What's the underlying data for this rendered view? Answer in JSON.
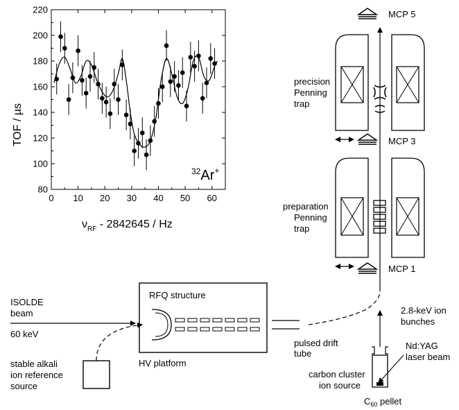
{
  "chart_data": {
    "type": "scatter",
    "xlabel_main": "ν",
    "xlabel_sub": "RF",
    "xlabel_rest": " - 2842645  /  Hz",
    "ylabel": "TOF  /  µs",
    "xlim": [
      0,
      65
    ],
    "ylim": [
      80,
      220
    ],
    "xticks": [
      0,
      10,
      20,
      30,
      40,
      50,
      60
    ],
    "yticks": [
      80,
      100,
      120,
      140,
      160,
      180,
      200,
      220
    ],
    "annotation_sup_mass": "32",
    "annotation_element": "Ar",
    "annotation_sup_charge": "+",
    "series": [
      {
        "points": [
          {
            "x": 2,
            "y": 166,
            "err": 12
          },
          {
            "x": 3.5,
            "y": 199,
            "err": 12
          },
          {
            "x": 5,
            "y": 190,
            "err": 12
          },
          {
            "x": 6.5,
            "y": 150,
            "err": 12
          },
          {
            "x": 8,
            "y": 167,
            "err": 12
          },
          {
            "x": 10,
            "y": 188,
            "err": 12
          },
          {
            "x": 11.5,
            "y": 165,
            "err": 12
          },
          {
            "x": 13,
            "y": 155,
            "err": 12
          },
          {
            "x": 14.5,
            "y": 168,
            "err": 12
          },
          {
            "x": 16,
            "y": 175,
            "err": 12
          },
          {
            "x": 17.5,
            "y": 162,
            "err": 12
          },
          {
            "x": 19,
            "y": 151,
            "err": 12
          },
          {
            "x": 20.5,
            "y": 148,
            "err": 12
          },
          {
            "x": 22,
            "y": 139,
            "err": 12
          },
          {
            "x": 23.5,
            "y": 162,
            "err": 12
          },
          {
            "x": 25,
            "y": 150,
            "err": 12
          },
          {
            "x": 26.5,
            "y": 177,
            "err": 12
          },
          {
            "x": 28,
            "y": 138,
            "err": 12
          },
          {
            "x": 29.5,
            "y": 131,
            "err": 12
          },
          {
            "x": 31,
            "y": 110,
            "err": 12
          },
          {
            "x": 32.5,
            "y": 116,
            "err": 12
          },
          {
            "x": 34,
            "y": 124,
            "err": 12
          },
          {
            "x": 35.5,
            "y": 107,
            "err": 12
          },
          {
            "x": 37,
            "y": 118,
            "err": 12
          },
          {
            "x": 38.5,
            "y": 133,
            "err": 12
          },
          {
            "x": 40,
            "y": 147,
            "err": 12
          },
          {
            "x": 41.5,
            "y": 160,
            "err": 12
          },
          {
            "x": 43,
            "y": 192,
            "err": 12
          },
          {
            "x": 44.5,
            "y": 164,
            "err": 12
          },
          {
            "x": 46,
            "y": 168,
            "err": 12
          },
          {
            "x": 47.5,
            "y": 161,
            "err": 12
          },
          {
            "x": 49,
            "y": 171,
            "err": 12
          },
          {
            "x": 50.5,
            "y": 145,
            "err": 12
          },
          {
            "x": 52,
            "y": 183,
            "err": 12
          },
          {
            "x": 53.5,
            "y": 176,
            "err": 12
          },
          {
            "x": 55,
            "y": 184,
            "err": 12
          },
          {
            "x": 56.5,
            "y": 151,
            "err": 12
          },
          {
            "x": 58,
            "y": 163,
            "err": 12
          },
          {
            "x": 59.5,
            "y": 182,
            "err": 12
          },
          {
            "x": 61,
            "y": 178,
            "err": 12
          }
        ],
        "fit": [
          [
            1,
            163
          ],
          [
            3,
            178
          ],
          [
            5,
            183
          ],
          [
            7,
            174
          ],
          [
            9,
            163
          ],
          [
            11,
            168
          ],
          [
            13,
            180
          ],
          [
            15,
            177
          ],
          [
            17,
            165
          ],
          [
            19,
            156
          ],
          [
            21,
            152
          ],
          [
            23,
            157
          ],
          [
            25,
            170
          ],
          [
            26.5,
            182
          ],
          [
            28,
            165
          ],
          [
            29.5,
            140
          ],
          [
            31,
            123
          ],
          [
            33,
            115
          ],
          [
            35,
            113
          ],
          [
            37,
            118
          ],
          [
            39,
            135
          ],
          [
            41,
            165
          ],
          [
            43,
            182
          ],
          [
            45,
            170
          ],
          [
            47,
            152
          ],
          [
            49,
            147
          ],
          [
            51,
            158
          ],
          [
            53,
            180
          ],
          [
            55,
            183
          ],
          [
            57,
            168
          ],
          [
            59,
            165
          ],
          [
            61,
            176
          ],
          [
            62,
            180
          ]
        ]
      }
    ]
  },
  "diagram": {
    "labels": {
      "mcp5": "MCP 5",
      "mcp3": "MCP 3",
      "mcp1": "MCP 1",
      "precision_1": "precision",
      "precision_2": "Penning",
      "precision_3": "trap",
      "prep_1": "preparation",
      "prep_2": "Penning",
      "prep_3": "trap",
      "isolde_1": "ISOLDE",
      "isolde_2": "beam",
      "isolde_3": "60 keV",
      "rfq": "RFQ structure",
      "hv": "HV platform",
      "drift_1": "pulsed drift",
      "drift_2": "tube",
      "ion_1": "2.8-keV ion",
      "ion_2": "bunches",
      "laser_1": "Nd:YAG",
      "laser_2": "laser beam",
      "cluster_1": "carbon cluster",
      "cluster_2": "ion source",
      "pellet_main": "C",
      "pellet_sub": "60",
      "pellet_rest": " pellet",
      "alkali_1": "stable alkali",
      "alkali_2": "ion reference",
      "alkali_3": "source"
    }
  }
}
